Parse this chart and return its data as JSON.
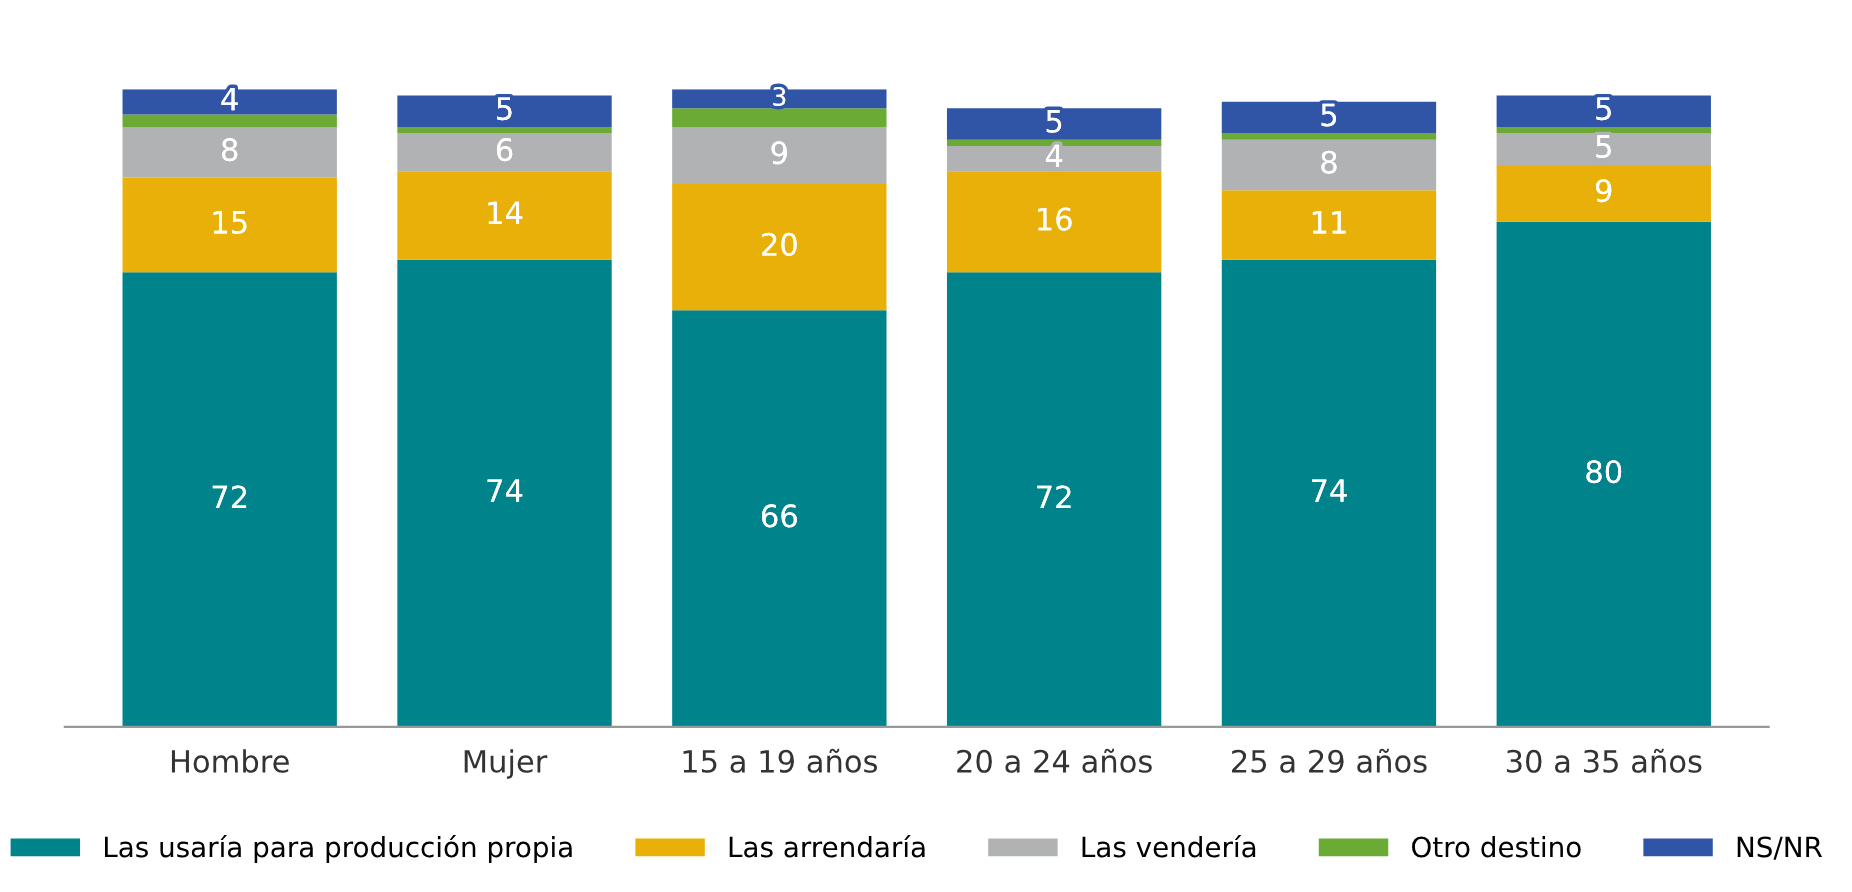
{
  "chart_data": {
    "type": "bar",
    "stacked": true,
    "categories": [
      "Hombre",
      "Mujer",
      "15 a 19 años",
      "20 a 24 años",
      "25 a 29 años",
      "30 a 35 años"
    ],
    "series": [
      {
        "name": "Las usaría para producción propia",
        "color": "#00838a",
        "values": [
          72,
          74,
          66,
          72,
          74,
          80
        ],
        "value_labels": [
          "72",
          "74",
          "66",
          "72",
          "74",
          "80"
        ]
      },
      {
        "name": "Las arrendaría",
        "color": "#e8b008",
        "values": [
          15,
          14,
          20,
          16,
          11,
          9
        ],
        "value_labels": [
          "15",
          "14",
          "20",
          "16",
          "11",
          "9"
        ]
      },
      {
        "name": "Las vendería",
        "color": "#b1b2b4",
        "values": [
          8,
          6,
          9,
          4,
          8,
          5
        ],
        "value_labels": [
          "8",
          "6",
          "9",
          "4",
          "8",
          "5"
        ]
      },
      {
        "name": "Otro destino",
        "color": "#6aaa35",
        "values": [
          2,
          1,
          3,
          1,
          1,
          1
        ],
        "value_labels": [
          null,
          null,
          null,
          null,
          null,
          null
        ]
      },
      {
        "name": "NS/NR",
        "color": "#3155a6",
        "values": [
          4,
          5,
          3,
          5,
          5,
          5
        ],
        "value_labels": [
          "4",
          "5",
          "3",
          "5",
          "5",
          "5"
        ]
      }
    ],
    "legend": "bottom",
    "grid": false,
    "tick_labels": "x"
  }
}
